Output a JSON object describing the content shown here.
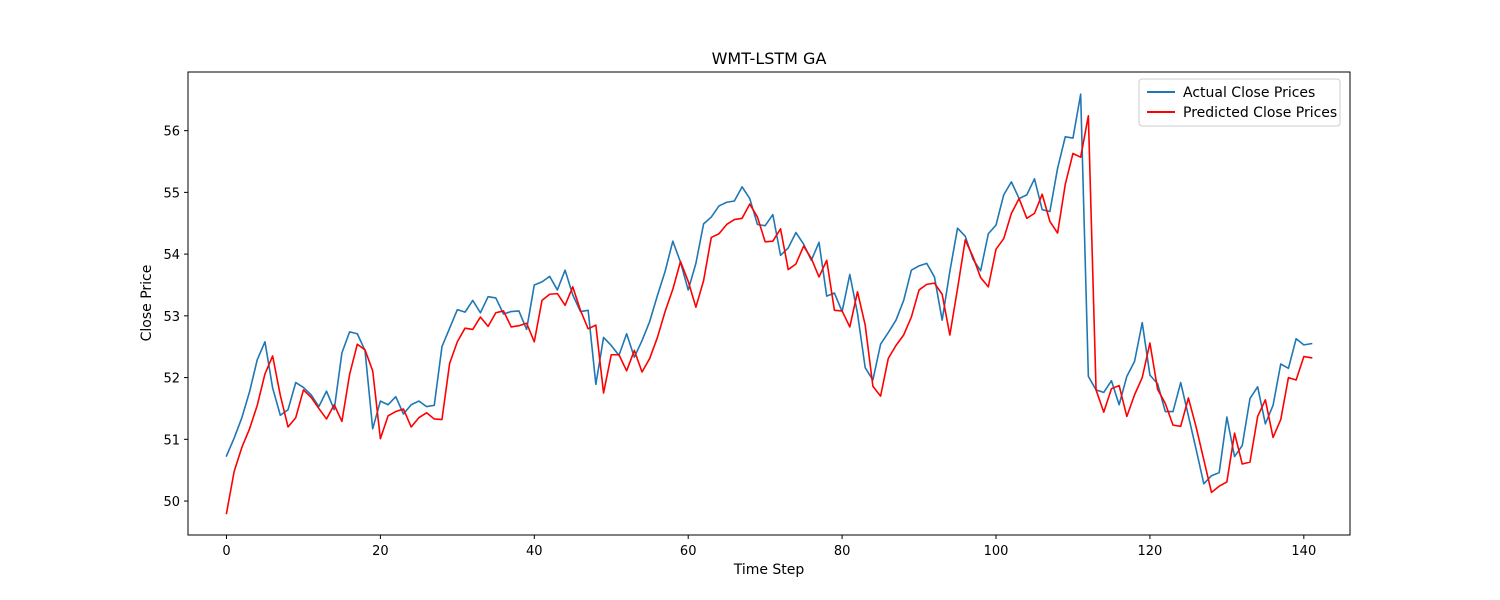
{
  "chart_data": {
    "type": "line",
    "title": "WMT-LSTM GA",
    "xlabel": "Time Step",
    "ylabel": "Close Price",
    "xlim": [
      -5,
      146
    ],
    "ylim": [
      49.45,
      56.95
    ],
    "xticks": [
      0,
      20,
      40,
      60,
      80,
      100,
      120,
      140
    ],
    "yticks": [
      50,
      51,
      52,
      53,
      54,
      55,
      56
    ],
    "grid": false,
    "legend_position": "top-right",
    "series": [
      {
        "name": "Actual Close Prices",
        "color": "#1f77b4",
        "values": [
          50.73,
          51.02,
          51.35,
          51.77,
          52.29,
          52.58,
          51.83,
          51.39,
          51.48,
          51.92,
          51.84,
          51.72,
          51.53,
          51.78,
          51.48,
          52.4,
          52.74,
          52.71,
          52.44,
          51.17,
          51.62,
          51.56,
          51.69,
          51.41,
          51.56,
          51.62,
          51.53,
          51.55,
          52.5,
          52.8,
          53.1,
          53.06,
          53.25,
          53.05,
          53.31,
          53.29,
          53.03,
          53.07,
          53.08,
          52.78,
          53.5,
          53.55,
          53.64,
          53.42,
          53.74,
          53.34,
          53.07,
          53.09,
          51.89,
          52.65,
          52.52,
          52.36,
          52.71,
          52.33,
          52.6,
          52.91,
          53.33,
          53.72,
          54.21,
          53.87,
          53.42,
          53.85,
          54.49,
          54.6,
          54.78,
          54.84,
          54.86,
          55.09,
          54.9,
          54.48,
          54.46,
          54.64,
          53.98,
          54.1,
          54.35,
          54.16,
          53.9,
          54.19,
          53.32,
          53.37,
          53.07,
          53.67,
          53.04,
          52.16,
          51.96,
          52.54,
          52.73,
          52.93,
          53.25,
          53.74,
          53.81,
          53.85,
          53.63,
          52.93,
          53.72,
          54.42,
          54.29,
          53.92,
          53.73,
          54.33,
          54.47,
          54.96,
          55.17,
          54.9,
          54.96,
          55.22,
          54.72,
          54.69,
          55.39,
          55.9,
          55.88,
          56.59,
          52.02,
          51.8,
          51.76,
          51.95,
          51.56,
          52.02,
          52.26,
          52.89,
          52.04,
          51.9,
          51.45,
          51.45,
          51.92,
          51.38,
          50.84,
          50.28,
          50.41,
          50.46,
          51.36,
          50.72,
          50.9,
          51.66,
          51.85,
          51.25,
          51.55,
          52.22,
          52.15,
          52.63,
          52.53,
          52.55
        ]
      },
      {
        "name": "Predicted Close Prices",
        "color": "#ff0000",
        "values": [
          49.8,
          50.48,
          50.87,
          51.17,
          51.55,
          52.06,
          52.35,
          51.71,
          51.2,
          51.35,
          51.8,
          51.68,
          51.5,
          51.33,
          51.56,
          51.29,
          52.05,
          52.54,
          52.45,
          52.11,
          51.01,
          51.38,
          51.45,
          51.49,
          51.2,
          51.35,
          51.43,
          51.33,
          51.32,
          52.23,
          52.58,
          52.8,
          52.78,
          52.98,
          52.83,
          53.05,
          53.08,
          52.82,
          52.84,
          52.88,
          52.58,
          53.25,
          53.35,
          53.36,
          53.17,
          53.47,
          53.09,
          52.79,
          52.85,
          51.75,
          52.37,
          52.37,
          52.11,
          52.44,
          52.09,
          52.31,
          52.65,
          53.07,
          53.43,
          53.88,
          53.56,
          53.14,
          53.57,
          54.27,
          54.33,
          54.48,
          54.56,
          54.58,
          54.81,
          54.6,
          54.2,
          54.21,
          54.41,
          53.75,
          53.84,
          54.13,
          53.93,
          53.63,
          53.9,
          53.09,
          53.08,
          52.82,
          53.39,
          52.85,
          51.86,
          51.7,
          52.31,
          52.52,
          52.69,
          52.98,
          53.42,
          53.51,
          53.53,
          53.35,
          52.69,
          53.44,
          54.23,
          53.96,
          53.62,
          53.47,
          54.08,
          54.25,
          54.66,
          54.9,
          54.58,
          54.66,
          54.97,
          54.53,
          54.34,
          55.13,
          55.63,
          55.57,
          56.24,
          51.8,
          51.44,
          51.82,
          51.87,
          51.37,
          51.72,
          52.0,
          52.56,
          51.81,
          51.58,
          51.23,
          51.21,
          51.67,
          51.2,
          50.67,
          50.14,
          50.24,
          50.31,
          51.1,
          50.6,
          50.63,
          51.37,
          51.64,
          51.03,
          51.32,
          52.0,
          51.96,
          52.34,
          52.32
        ]
      }
    ]
  }
}
